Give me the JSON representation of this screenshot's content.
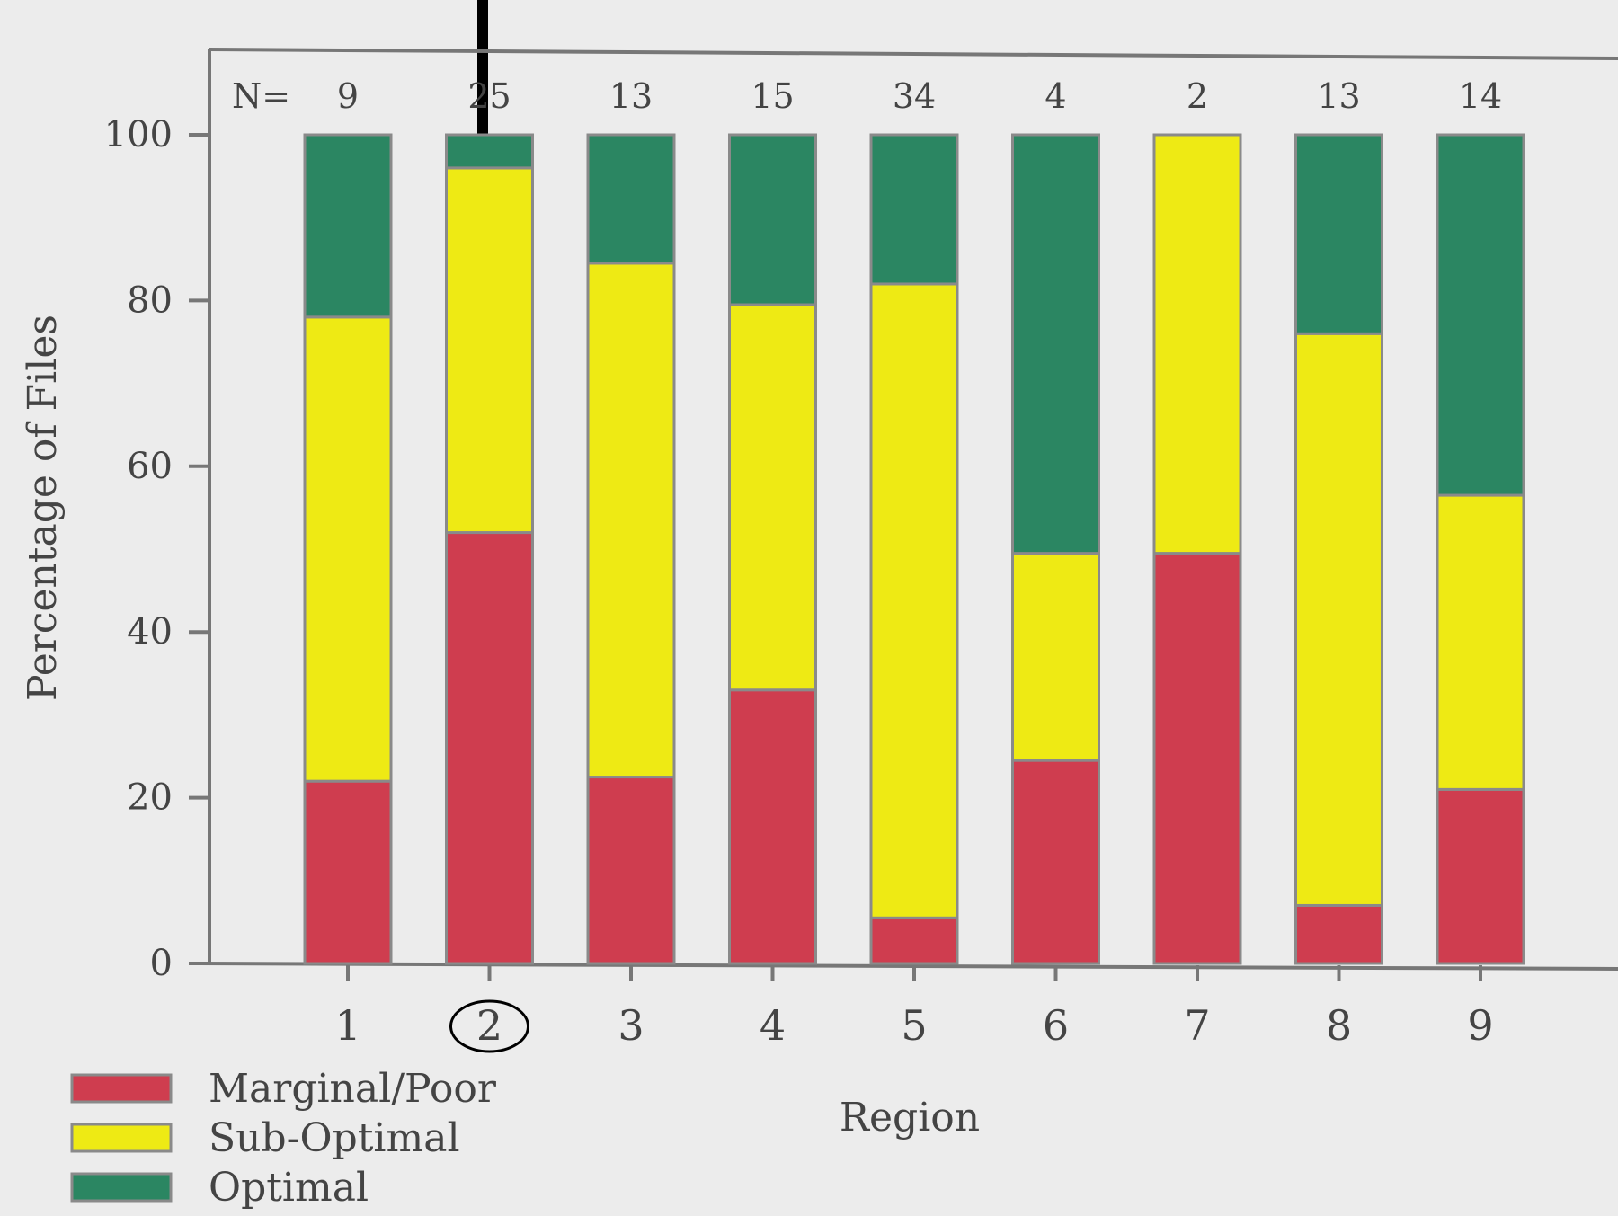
{
  "chart_data": {
    "type": "bar",
    "stacked": true,
    "xlabel": "Region",
    "ylabel": "Percentage of Files",
    "ylim": [
      0,
      100
    ],
    "yticks": [
      0,
      20,
      40,
      60,
      80,
      100
    ],
    "n_label": "N=",
    "categories": [
      "1",
      "2",
      "3",
      "4",
      "5",
      "6",
      "7",
      "8",
      "9"
    ],
    "n_values": [
      "9",
      "25",
      "13",
      "15",
      "34",
      "4",
      "2",
      "13",
      "14"
    ],
    "highlighted_category": "2",
    "series": [
      {
        "name": "Marginal/Poor",
        "color": "#cf3d4f",
        "values": [
          22,
          52,
          22.5,
          33,
          5.5,
          24.5,
          49.5,
          7,
          21
        ]
      },
      {
        "name": "Sub-Optimal",
        "color": "#eeea14",
        "values": [
          56,
          44,
          62,
          46.5,
          76.5,
          25,
          50.5,
          69,
          35.5
        ]
      },
      {
        "name": "Optimal",
        "color": "#2b8662",
        "values": [
          22,
          4,
          15.5,
          20.5,
          18,
          50.5,
          0,
          24,
          43.5
        ]
      }
    ],
    "legend_position": "bottom-left",
    "grid": false
  }
}
